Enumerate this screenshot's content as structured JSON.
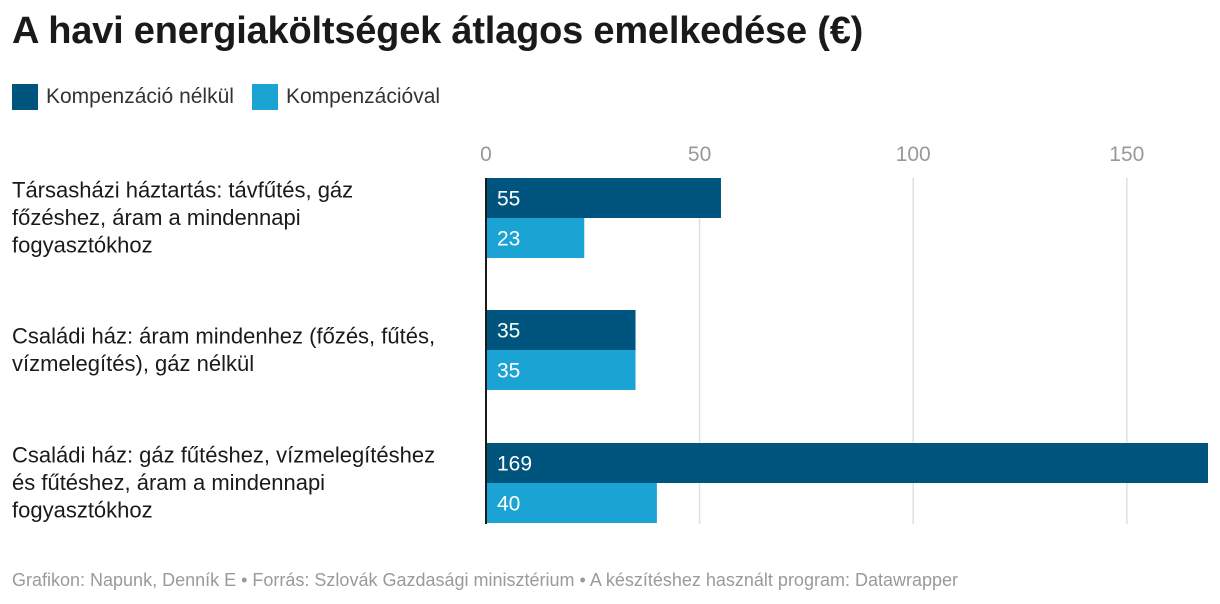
{
  "title": "A havi energiaköltségek átlagos emelkedése (€)",
  "colors": {
    "without_compensation": "#00557f",
    "with_compensation": "#1ba3d4",
    "gridline": "#e0e0e0",
    "tick_text": "#999999"
  },
  "chart_data": {
    "type": "bar",
    "orientation": "horizontal",
    "title": "A havi energiaköltségek átlagos emelkedése (€)",
    "categories": [
      [
        "Társasházi háztartás: távfűtés, gáz",
        "főzéshez, áram a mindennapi",
        "fogyasztókhoz"
      ],
      [
        "Családi ház: áram mindenhez (főzés, fűtés,",
        "vízmelegítés), gáz nélkül"
      ],
      [
        "Családi ház: gáz fűtéshez, vízmelegítéshez",
        "és fűtéshez, áram a mindennapi",
        "fogyasztókhoz"
      ]
    ],
    "series": [
      {
        "name": "Kompenzáció nélkül",
        "values": [
          55,
          35,
          169
        ]
      },
      {
        "name": "Kompenzációval",
        "values": [
          23,
          35,
          40
        ]
      }
    ],
    "xticks": [
      0,
      50,
      100,
      150
    ],
    "xlim": [
      0,
      169
    ],
    "grid": true,
    "legend": "top-left"
  },
  "footer": "Grafikon: Napunk, Denník E • Forrás: Szlovák Gazdasági minisztérium • A készítéshez használt program: Datawrapper"
}
